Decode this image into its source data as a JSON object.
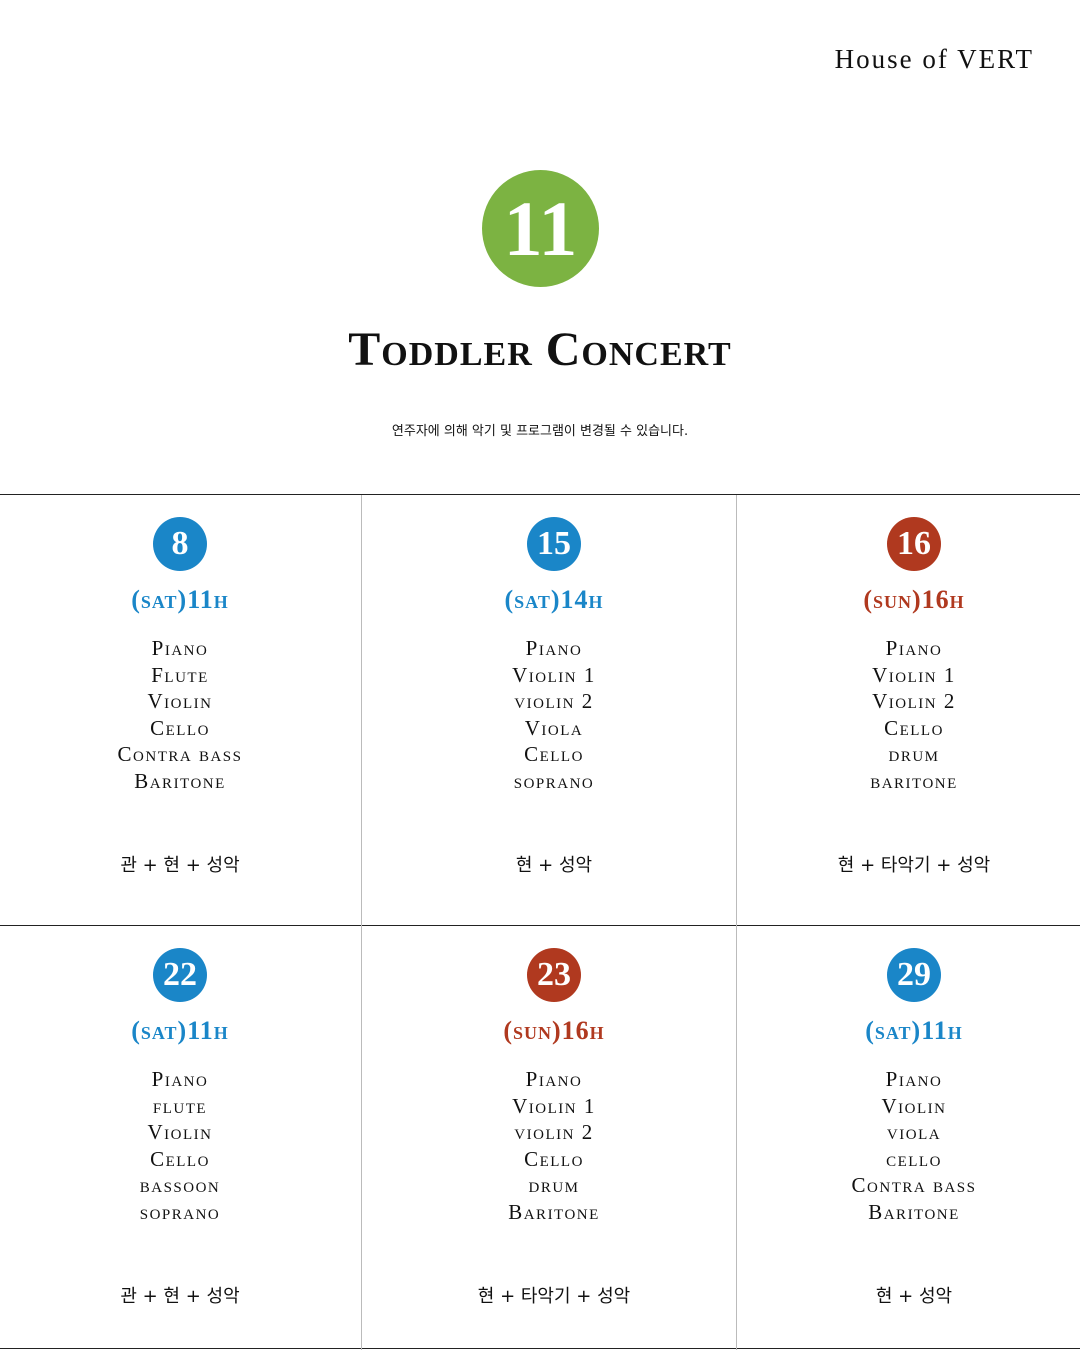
{
  "brand": "House of VERT",
  "month": "11",
  "title": "Toddler Concert",
  "notice": "연주자에 의해 악기 및 프로그램이 변경될 수 있습니다.",
  "colors": {
    "month": "#7cb342",
    "sat": "#1a86c8",
    "sun": "#b0391f"
  },
  "concerts": [
    {
      "day": "8",
      "time": "(sat)11h",
      "type": "sat",
      "instruments": [
        "Piano",
        "Flute",
        "Violin",
        "Cello",
        "Contra bass",
        "Baritone"
      ],
      "category": "관 + 현 + 성악"
    },
    {
      "day": "15",
      "time": "(sat)14h",
      "type": "sat",
      "instruments": [
        "Piano",
        "Violin 1",
        "violin 2",
        "Viola",
        "Cello",
        "soprano"
      ],
      "category": "현 + 성악"
    },
    {
      "day": "16",
      "time": "(sun)16h",
      "type": "sun",
      "instruments": [
        "Piano",
        "Violin 1",
        "Violin 2",
        "Cello",
        "drum",
        "baritone"
      ],
      "category": "현 + 타악기 + 성악"
    },
    {
      "day": "22",
      "time": "(sat)11h",
      "type": "sat",
      "instruments": [
        "Piano",
        "flute",
        "Violin",
        "Cello",
        "bassoon",
        "soprano"
      ],
      "category": "관 + 현 + 성악"
    },
    {
      "day": "23",
      "time": "(sun)16h",
      "type": "sun",
      "instruments": [
        "Piano",
        "Violin 1",
        "violin 2",
        "Cello",
        "drum",
        "Baritone"
      ],
      "category": "현 + 타악기 + 성악"
    },
    {
      "day": "29",
      "time": "(sat)11h",
      "type": "sat",
      "instruments": [
        "Piano",
        "Violin",
        "viola",
        "cello",
        "Contra bass",
        "Baritone"
      ],
      "category": "현 + 성악"
    }
  ]
}
